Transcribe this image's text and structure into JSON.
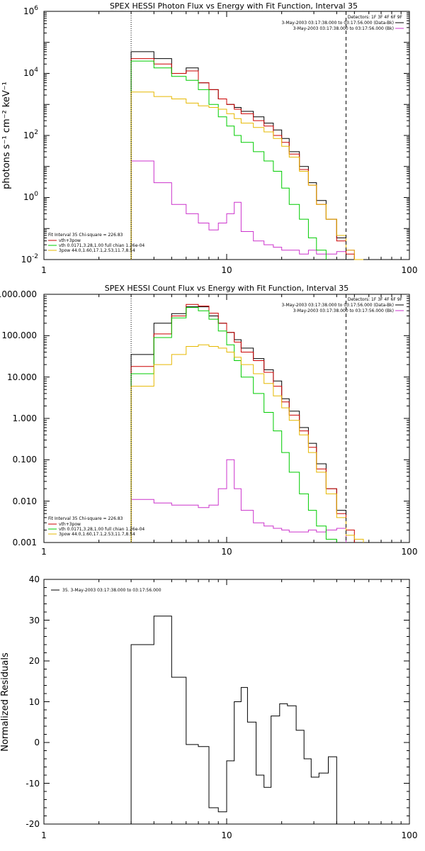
{
  "chart_data": [
    {
      "type": "line",
      "title": "SPEX HESSI Photon Flux vs Energy with Fit Function, Interval 35",
      "ylabel": "photons s⁻¹ cm⁻² keV⁻¹",
      "xlabel": "",
      "xscale": "log",
      "yscale": "log",
      "xlim": [
        1,
        100
      ],
      "ylim": [
        0.01,
        1000000
      ],
      "x_ticks": [
        "1",
        "10",
        "100"
      ],
      "y_ticks": [
        {
          "base": "10",
          "exp": "-2",
          "value": 0.01
        },
        {
          "base": "10",
          "exp": "0",
          "value": 1
        },
        {
          "base": "10",
          "exp": "2",
          "value": 100
        },
        {
          "base": "10",
          "exp": "4",
          "value": 10000
        },
        {
          "base": "10",
          "exp": "6",
          "value": 1000000
        }
      ],
      "legend_top": {
        "placement": "top-right",
        "header": "Detectors: 1F 3F 4F 6F 9F",
        "entries": [
          {
            "label": "3-May-2003 03:17:38.000 to 03:17:56.000 (Data-Bk)",
            "color": "#000000"
          },
          {
            "label": "3-May-2003 03:17:38.000 to 03:17:56.000 (Bk)",
            "color": "#cc33cc"
          }
        ]
      },
      "legend_bottom": {
        "placement": "bottom-left",
        "header": "Fit Interval 35   Chi-square = 226.83",
        "entries": [
          {
            "label": "vth+3pow",
            "color": "#cc0000"
          },
          {
            "label": "vth 0.0171,3.28,1.00  full chian 1.26e-04",
            "color": "#00cc00"
          },
          {
            "label": "3pow 44.0,1.60,17.1,2.53,11.7,8.54",
            "color": "#e6b800"
          }
        ]
      },
      "vlines": [
        {
          "x": 3.0,
          "style": "dotted"
        },
        {
          "x": 45.0,
          "style": "dashed"
        }
      ],
      "edges": [
        3.0,
        4.0,
        5.0,
        6.0,
        7.0,
        8.0,
        9.0,
        10.0,
        11.0,
        12.0,
        14.0,
        16.0,
        18.0,
        20.0,
        22.0,
        25.0,
        28.0,
        31.0,
        35.0,
        40.0,
        45.0,
        50.0,
        56.0
      ],
      "series": [
        {
          "name": "Data-Bk",
          "color": "#000000",
          "values": [
            50000,
            30000,
            10000,
            15000,
            5000,
            3000,
            1500,
            1000,
            800,
            600,
            400,
            250,
            150,
            80,
            30,
            10,
            3,
            0.8,
            0.2,
            0.05,
            null,
            null
          ]
        },
        {
          "name": "Bk",
          "color": "#cc33cc",
          "values": [
            15,
            3,
            0.6,
            0.3,
            0.15,
            0.09,
            0.15,
            0.3,
            0.7,
            0.08,
            0.04,
            0.03,
            0.025,
            0.02,
            0.02,
            0.015,
            0.02,
            0.015,
            0.015,
            0.018,
            0.02,
            null
          ]
        },
        {
          "name": "vth+3pow",
          "color": "#cc0000",
          "values": [
            30000,
            20000,
            10000,
            12000,
            5000,
            3000,
            1500,
            1000,
            700,
            500,
            300,
            200,
            100,
            60,
            25,
            8,
            2.5,
            0.6,
            0.2,
            0.04,
            0.015,
            null
          ]
        },
        {
          "name": "vth",
          "color": "#00cc00",
          "values": [
            25000,
            15000,
            8000,
            6000,
            3000,
            1000,
            400,
            200,
            100,
            60,
            30,
            15,
            7,
            2,
            0.6,
            0.2,
            0.05,
            0.02,
            null,
            null,
            null,
            null
          ]
        },
        {
          "name": "3pow",
          "color": "#e6b800",
          "values": [
            2500,
            1800,
            1500,
            1100,
            900,
            800,
            700,
            500,
            350,
            250,
            180,
            130,
            80,
            45,
            20,
            7,
            2.5,
            0.6,
            0.2,
            0.06,
            0.02,
            0.01
          ]
        }
      ]
    },
    {
      "type": "line",
      "title": "SPEX HESSI Count Flux vs Energy with Fit Function, Interval 35",
      "ylabel": "",
      "xlabel": "",
      "xscale": "log",
      "yscale": "log",
      "xlim": [
        1,
        100
      ],
      "ylim": [
        0.001,
        1000
      ],
      "x_ticks": [
        "1",
        "10",
        "100"
      ],
      "y_ticks": [
        {
          "label": "0.001",
          "value": 0.001
        },
        {
          "label": "0.010",
          "value": 0.01
        },
        {
          "label": "0.100",
          "value": 0.1
        },
        {
          "label": "1.000",
          "value": 1
        },
        {
          "label": "10.000",
          "value": 10
        },
        {
          "label": "100.000",
          "value": 100
        },
        {
          "label": "1000.000",
          "value": 1000
        }
      ],
      "legend_top": {
        "placement": "top-right",
        "header": "Detectors: 1F 3F 4F 6F 9F",
        "entries": [
          {
            "label": "3-May-2003 03:17:38.000 to 03:17:56.000 (Data-Bk)",
            "color": "#000000"
          },
          {
            "label": "3-May-2003 03:17:38.000 to 03:17:56.000 (Bk)",
            "color": "#cc33cc"
          }
        ]
      },
      "legend_bottom": {
        "placement": "bottom-left",
        "header": "Fit Interval 35   Chi-square = 226.83",
        "entries": [
          {
            "label": "vth+3pow",
            "color": "#cc0000"
          },
          {
            "label": "vth 0.0171,3.28,1.00  full chian 1.26e-04",
            "color": "#00cc00"
          },
          {
            "label": "3pow 44.0,1.60,17.1,2.53,11.7,8.54",
            "color": "#e6b800"
          }
        ]
      },
      "vlines": [
        {
          "x": 3.0,
          "style": "dotted"
        },
        {
          "x": 45.0,
          "style": "dashed"
        }
      ],
      "edges": [
        3.0,
        4.0,
        5.0,
        6.0,
        7.0,
        8.0,
        9.0,
        10.0,
        11.0,
        12.0,
        14.0,
        16.0,
        18.0,
        20.0,
        22.0,
        25.0,
        28.0,
        31.0,
        35.0,
        40.0,
        45.0,
        50.0,
        56.0,
        62.0
      ],
      "series": [
        {
          "name": "Data-Bk",
          "color": "#000000",
          "values": [
            35,
            200,
            340,
            500,
            500,
            300,
            200,
            120,
            80,
            50,
            28,
            15,
            8,
            3,
            1.5,
            0.6,
            0.25,
            0.08,
            0.02,
            0.006,
            null,
            null,
            null
          ]
        },
        {
          "name": "Bk",
          "color": "#cc33cc",
          "values": [
            0.011,
            0.009,
            0.008,
            0.008,
            0.007,
            0.008,
            0.02,
            0.1,
            0.02,
            0.006,
            0.003,
            0.0025,
            0.0022,
            0.002,
            0.0018,
            0.0018,
            0.002,
            0.0018,
            0.002,
            0.0022,
            null,
            null,
            null
          ]
        },
        {
          "name": "vth+3pow",
          "color": "#cc0000",
          "values": [
            18,
            110,
            300,
            570,
            520,
            350,
            200,
            120,
            70,
            40,
            25,
            13,
            6,
            2.5,
            1.2,
            0.5,
            0.2,
            0.06,
            0.02,
            0.005,
            0.002,
            null,
            null
          ]
        },
        {
          "name": "vth",
          "color": "#00cc00",
          "values": [
            12,
            90,
            270,
            480,
            400,
            250,
            130,
            60,
            25,
            10,
            4,
            1.4,
            0.5,
            0.15,
            0.05,
            0.015,
            0.006,
            0.0025,
            0.0012,
            null,
            null,
            null,
            null
          ]
        },
        {
          "name": "3pow",
          "color": "#e6b800",
          "values": [
            6,
            20,
            35,
            55,
            60,
            55,
            50,
            40,
            30,
            20,
            12,
            7,
            3.5,
            1.8,
            0.9,
            0.4,
            0.15,
            0.05,
            0.015,
            0.004,
            0.0015,
            0.0012,
            null
          ]
        }
      ]
    },
    {
      "type": "line",
      "title": "",
      "ylabel": "Normalized Residuals",
      "xlabel": "",
      "xscale": "log",
      "yscale": "linear",
      "xlim": [
        1,
        100
      ],
      "ylim": [
        -20,
        40
      ],
      "x_ticks": [
        "1",
        "10",
        "100"
      ],
      "y_ticks": [
        {
          "label": "-20",
          "value": -20
        },
        {
          "label": "-10",
          "value": -10
        },
        {
          "label": "0",
          "value": 0
        },
        {
          "label": "10",
          "value": 10
        },
        {
          "label": "20",
          "value": 20
        },
        {
          "label": "30",
          "value": 30
        },
        {
          "label": "40",
          "value": 40
        }
      ],
      "legend_top": {
        "placement": "top-left",
        "header": "",
        "entries": [
          {
            "label": "35.  3-May-2003 03:17:38.000 to 03:17:56.000",
            "color": "#000000"
          }
        ]
      },
      "edges": [
        3.0,
        4.0,
        5.0,
        6.0,
        7.0,
        8.0,
        9.0,
        10.0,
        11.0,
        12.0,
        13.0,
        14.5,
        16.0,
        17.5,
        19.5,
        21.5,
        24.0,
        26.5,
        29.0,
        32.0,
        36.0,
        40.0,
        45.0
      ],
      "series": [
        {
          "name": "35.",
          "color": "#000000",
          "values": [
            24,
            31,
            16,
            -0.5,
            -1,
            -16,
            -17,
            -4.5,
            10,
            13.5,
            5,
            -8,
            -11,
            6.5,
            9.5,
            9,
            3,
            -4,
            -8.5,
            -7.5,
            -3.5
          ]
        }
      ]
    }
  ]
}
